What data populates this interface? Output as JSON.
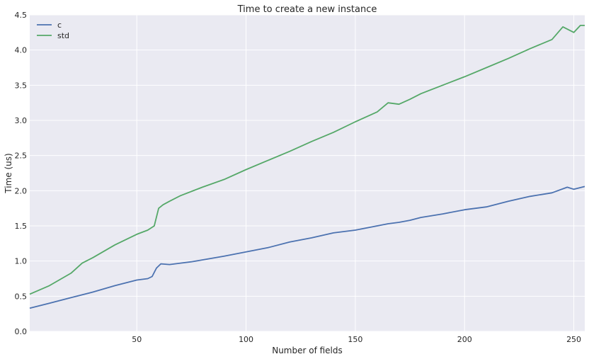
{
  "chart_data": {
    "type": "line",
    "title": "Time to create a new instance",
    "xlabel": "Number of fields",
    "ylabel": "Time (us)",
    "xlim": [
      1,
      255
    ],
    "ylim": [
      0,
      4.5
    ],
    "xticks": [
      50,
      100,
      150,
      200,
      250
    ],
    "yticks": [
      0.0,
      0.5,
      1.0,
      1.5,
      2.0,
      2.5,
      3.0,
      3.5,
      4.0,
      4.5
    ],
    "ytick_labels": [
      "0.0",
      "0.5",
      "1.0",
      "1.5",
      "2.0",
      "2.5",
      "3.0",
      "3.5",
      "4.0",
      "4.5"
    ],
    "grid": true,
    "legend_position": "top-left",
    "series": [
      {
        "name": "c",
        "color": "#4c72b0",
        "points": [
          [
            1,
            0.33
          ],
          [
            10,
            0.4
          ],
          [
            20,
            0.48
          ],
          [
            30,
            0.56
          ],
          [
            40,
            0.65
          ],
          [
            50,
            0.73
          ],
          [
            55,
            0.75
          ],
          [
            57,
            0.78
          ],
          [
            59,
            0.9
          ],
          [
            61,
            0.96
          ],
          [
            65,
            0.95
          ],
          [
            75,
            0.99
          ],
          [
            90,
            1.07
          ],
          [
            100,
            1.13
          ],
          [
            110,
            1.19
          ],
          [
            120,
            1.27
          ],
          [
            130,
            1.33
          ],
          [
            140,
            1.4
          ],
          [
            150,
            1.44
          ],
          [
            160,
            1.5
          ],
          [
            165,
            1.53
          ],
          [
            170,
            1.55
          ],
          [
            175,
            1.58
          ],
          [
            180,
            1.62
          ],
          [
            190,
            1.67
          ],
          [
            200,
            1.73
          ],
          [
            210,
            1.77
          ],
          [
            220,
            1.85
          ],
          [
            230,
            1.92
          ],
          [
            240,
            1.97
          ],
          [
            247,
            2.05
          ],
          [
            250,
            2.02
          ],
          [
            255,
            2.06
          ]
        ]
      },
      {
        "name": "std",
        "color": "#55a868",
        "points": [
          [
            1,
            0.53
          ],
          [
            10,
            0.65
          ],
          [
            20,
            0.83
          ],
          [
            25,
            0.97
          ],
          [
            30,
            1.05
          ],
          [
            40,
            1.23
          ],
          [
            50,
            1.38
          ],
          [
            55,
            1.44
          ],
          [
            58,
            1.5
          ],
          [
            60,
            1.75
          ],
          [
            62,
            1.8
          ],
          [
            65,
            1.85
          ],
          [
            70,
            1.93
          ],
          [
            80,
            2.05
          ],
          [
            90,
            2.16
          ],
          [
            100,
            2.3
          ],
          [
            110,
            2.43
          ],
          [
            120,
            2.56
          ],
          [
            130,
            2.7
          ],
          [
            140,
            2.83
          ],
          [
            150,
            2.98
          ],
          [
            160,
            3.12
          ],
          [
            165,
            3.25
          ],
          [
            170,
            3.23
          ],
          [
            175,
            3.3
          ],
          [
            180,
            3.38
          ],
          [
            190,
            3.5
          ],
          [
            200,
            3.62
          ],
          [
            210,
            3.75
          ],
          [
            220,
            3.88
          ],
          [
            230,
            4.02
          ],
          [
            240,
            4.15
          ],
          [
            245,
            4.33
          ],
          [
            250,
            4.25
          ],
          [
            253,
            4.35
          ],
          [
            255,
            4.35
          ]
        ]
      }
    ]
  }
}
